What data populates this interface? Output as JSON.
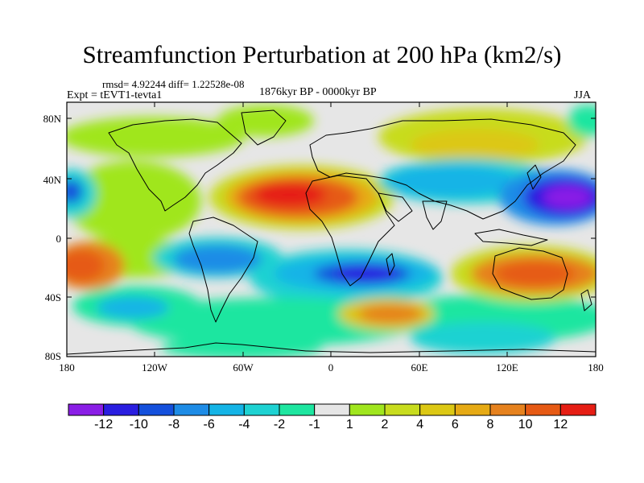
{
  "title": "Streamfunction Perturbation at 200 hPa (km2/s)",
  "stats": "rmsd= 4.92244 diff= 1.22528e-08",
  "experiment": "Expt = tEVT1-tevta1",
  "period": "1876kyr BP - 0000kyr BP",
  "season": "JJA",
  "lat_ticks": [
    "80N",
    "40N",
    "0",
    "40S",
    "80S"
  ],
  "lon_ticks": [
    "180",
    "120W",
    "60W",
    "0",
    "60E",
    "120E",
    "180"
  ],
  "colorbar": {
    "colors": [
      "#8a1ee6",
      "#2a1ee0",
      "#1450dc",
      "#1e8ce6",
      "#14b4e6",
      "#1ed2d2",
      "#1ee6a0",
      "#e6e6e6",
      "#a0e61e",
      "#c8dc1e",
      "#dcc814",
      "#e6aa14",
      "#e6821e",
      "#e65a14",
      "#e61e14"
    ],
    "labels": [
      "-12",
      "-10",
      "-8",
      "-6",
      "-4",
      "-2",
      "-1",
      "1",
      "2",
      "4",
      "6",
      "8",
      "10",
      "12"
    ]
  },
  "colors": {
    "background": "#ffffff",
    "neutral": "#e6e6e6",
    "coastline": "#000000"
  }
}
